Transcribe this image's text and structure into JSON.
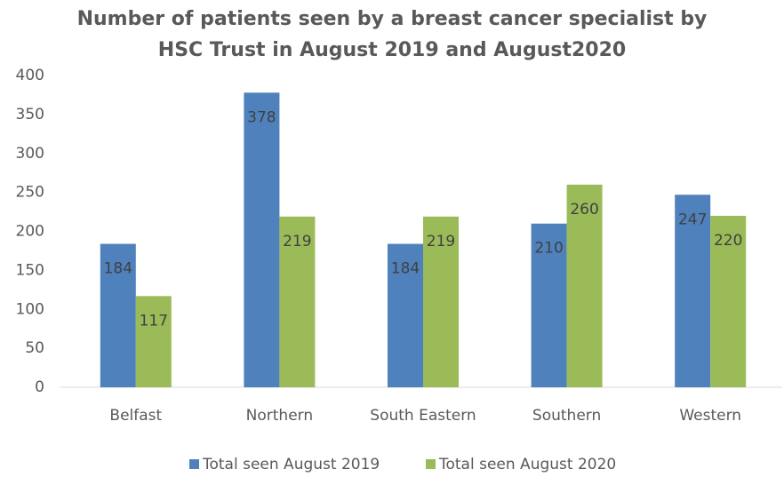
{
  "chart_data": {
    "type": "bar",
    "title": [
      "Number of patients seen by a breast cancer specialist by",
      "HSC Trust in August 2019 and August2020"
    ],
    "categories": [
      "Belfast",
      "Northern",
      "South Eastern",
      "Southern",
      "Western"
    ],
    "series": [
      {
        "name": "Total seen August 2019",
        "color": "#4f81bd",
        "values": [
          184,
          378,
          184,
          210,
          247
        ]
      },
      {
        "name": "Total seen August 2020",
        "color": "#9bbb59",
        "values": [
          117,
          219,
          219,
          260,
          220
        ]
      }
    ],
    "ylim": [
      0,
      400
    ],
    "yticks": [
      0,
      50,
      100,
      150,
      200,
      250,
      300,
      350,
      400
    ],
    "grid": false,
    "legend": "bottom"
  }
}
